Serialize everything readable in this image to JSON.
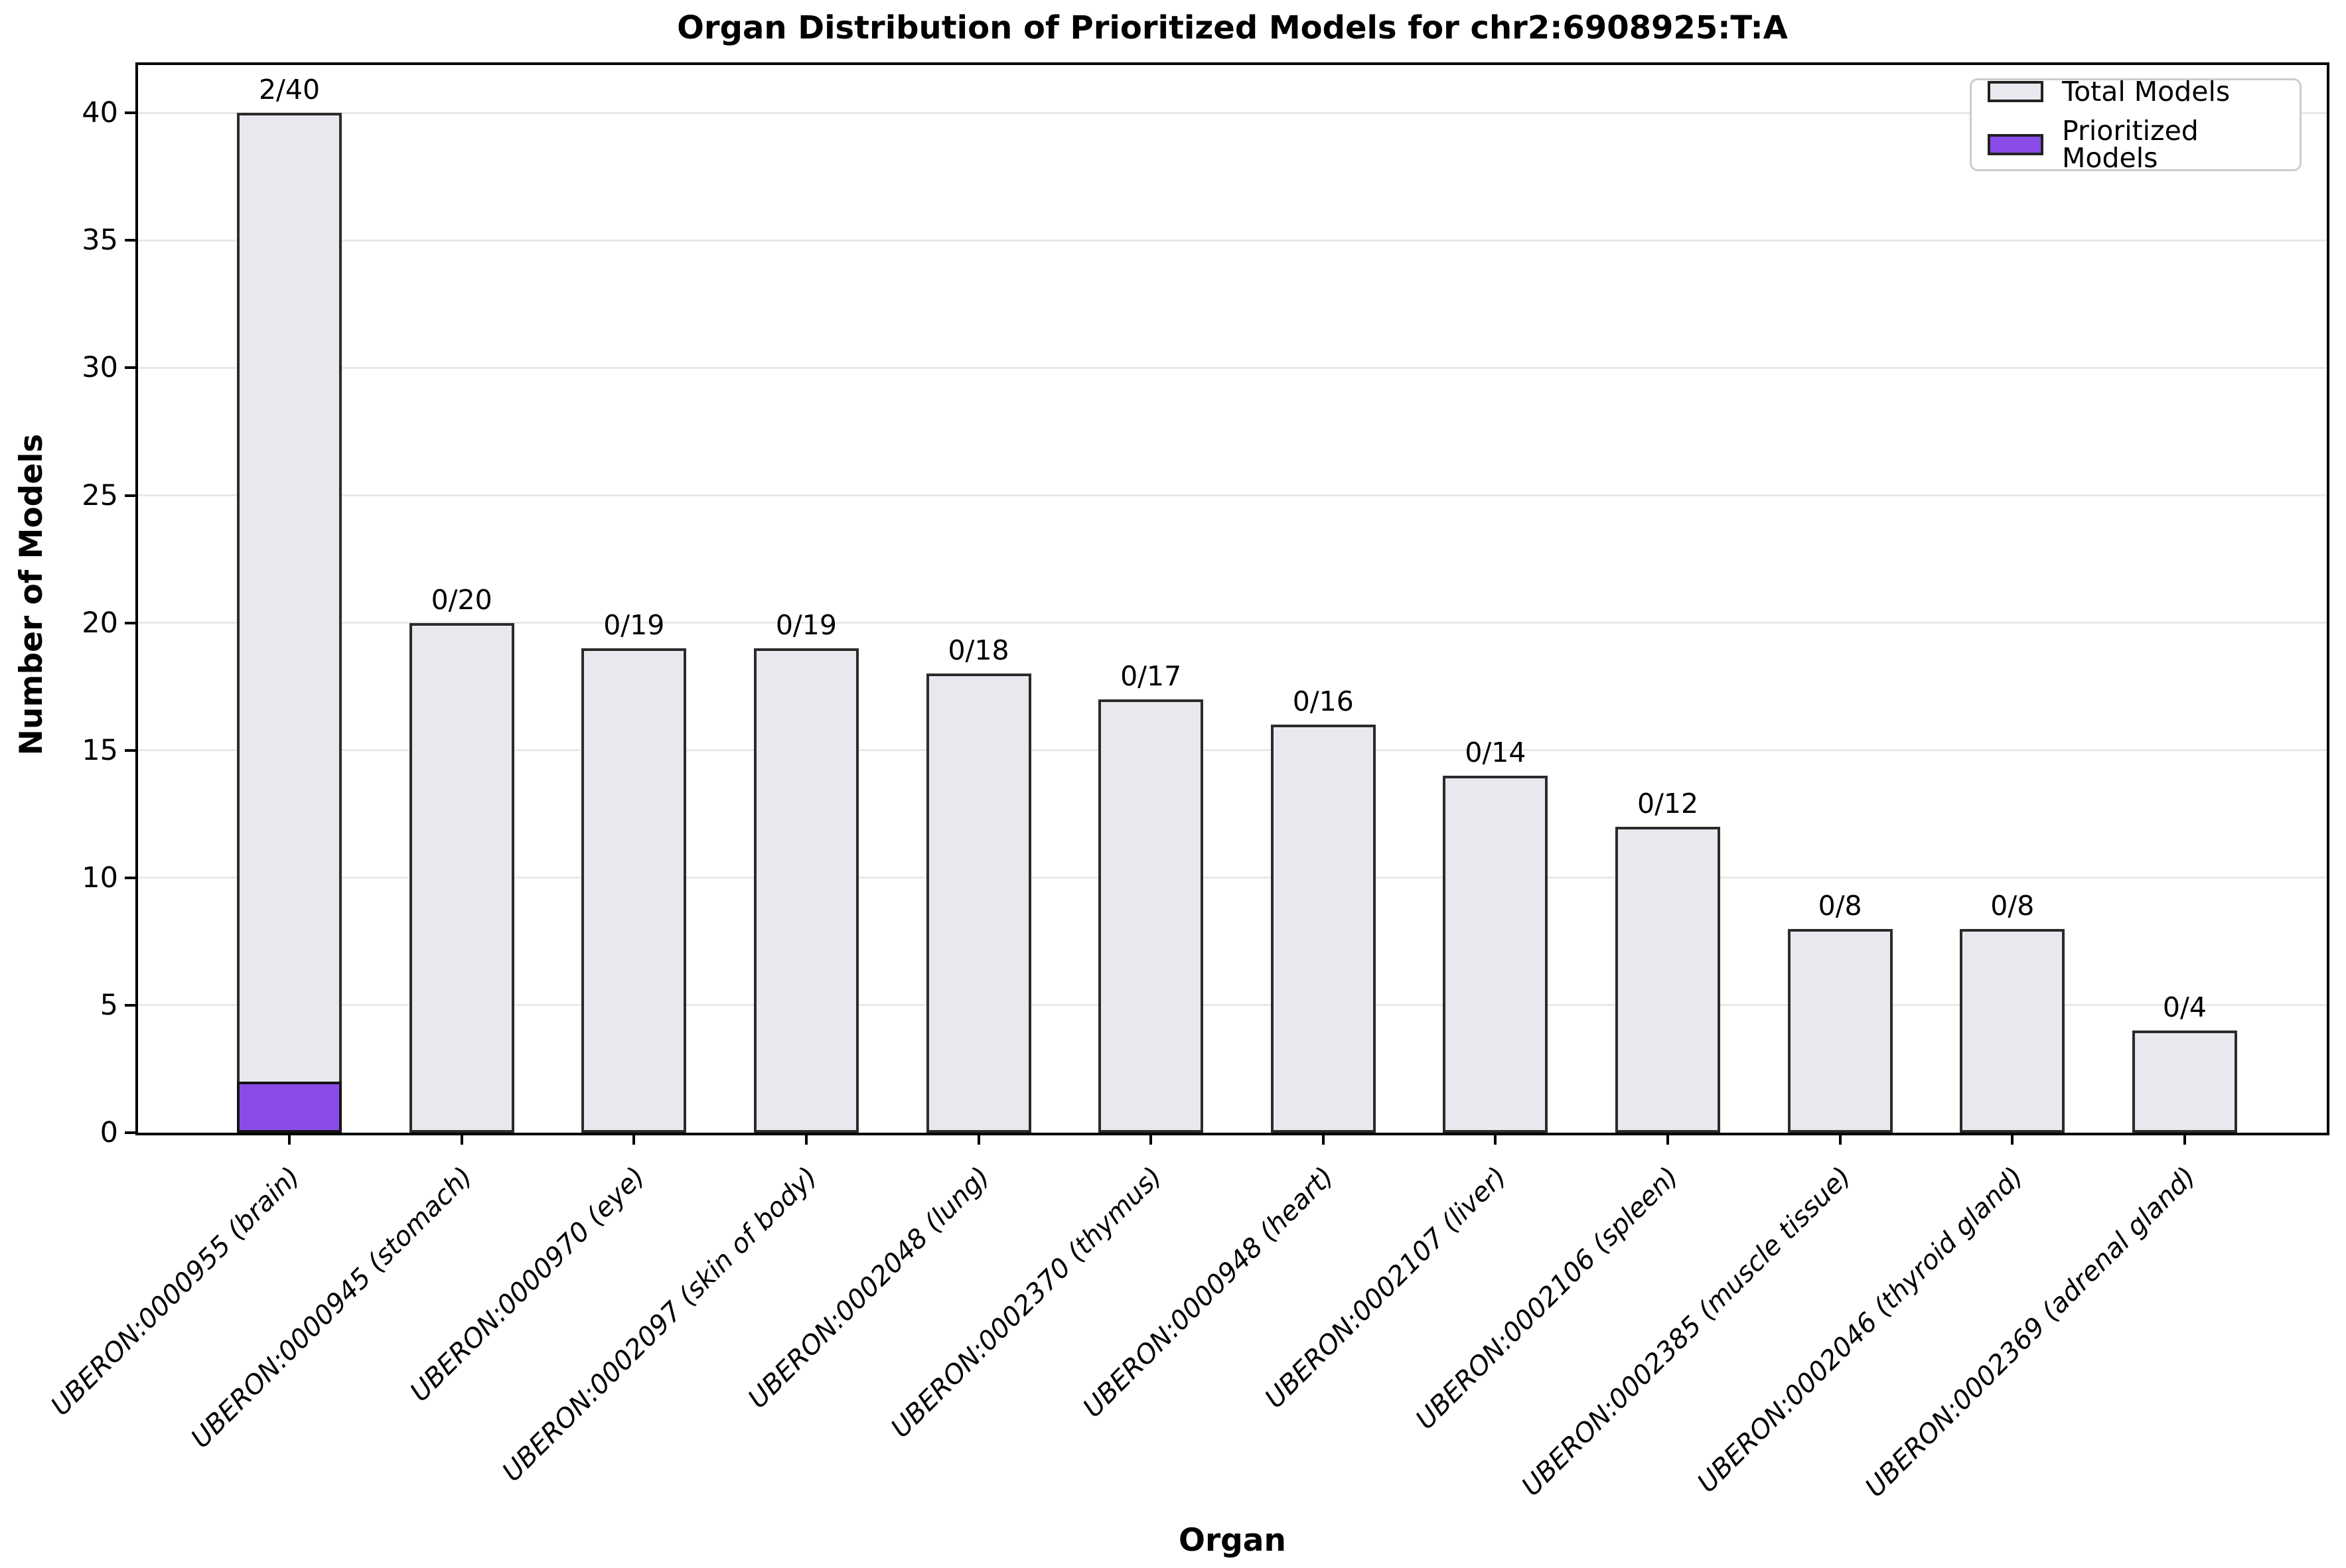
{
  "title": "Organ Distribution of Prioritized Models for chr2:6908925:T:A",
  "chart_data": {
    "type": "bar",
    "title": "Organ Distribution of Prioritized Models for chr2:6908925:T:A",
    "xlabel": "Organ",
    "ylabel": "Number of Models",
    "categories": [
      "UBERON:0000955 (brain)",
      "UBERON:0000945 (stomach)",
      "UBERON:0000970 (eye)",
      "UBERON:0002097 (skin of body)",
      "UBERON:0002048 (lung)",
      "UBERON:0002370 (thymus)",
      "UBERON:0000948 (heart)",
      "UBERON:0002107 (liver)",
      "UBERON:0002106 (spleen)",
      "UBERON:0002385 (muscle tissue)",
      "UBERON:0002046 (thyroid gland)",
      "UBERON:0002369 (adrenal gland)"
    ],
    "series": [
      {
        "name": "Total Models",
        "values": [
          40,
          20,
          19,
          19,
          18,
          17,
          16,
          14,
          12,
          8,
          8,
          4
        ]
      },
      {
        "name": "Prioritized Models",
        "values": [
          2,
          0,
          0,
          0,
          0,
          0,
          0,
          0,
          0,
          0,
          0,
          0
        ]
      }
    ],
    "bar_annotations": [
      "2/40",
      "0/20",
      "0/19",
      "0/19",
      "0/18",
      "0/17",
      "0/16",
      "0/14",
      "0/12",
      "0/8",
      "0/8",
      "0/4"
    ],
    "yticks": [
      0,
      5,
      10,
      15,
      20,
      25,
      30,
      35,
      40
    ],
    "ylim": [
      0,
      42
    ],
    "grid": "horizontal",
    "legend_position": "upper right",
    "colors": {
      "total_fill": "#e8e9ee",
      "total_edge": "#2b2b2b",
      "prioritized_fill": "#8a4be8",
      "prioritized_edge": "#151515",
      "gridline": "#e8e8e8"
    }
  },
  "legend": {
    "items": [
      {
        "label": "Total Models",
        "color": "#e8e9ee"
      },
      {
        "label": "Prioritized Models",
        "color": "#8a4be8"
      }
    ]
  }
}
